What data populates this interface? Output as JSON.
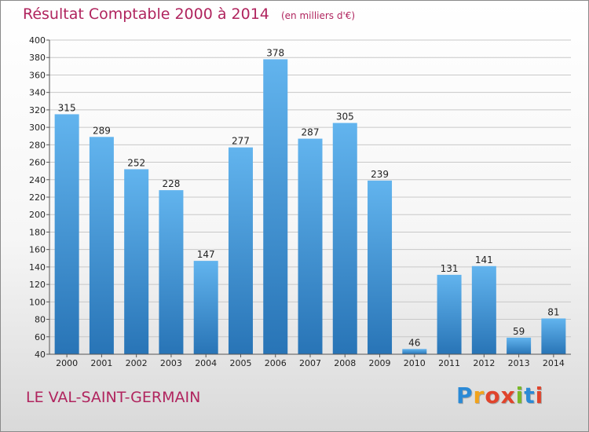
{
  "header": {
    "title": "Résultat Comptable 2000 à 2014",
    "unit": "(en milliers d'€)"
  },
  "footer": {
    "commune": "LE VAL-SAINT-GERMAIN",
    "logo": {
      "letters": [
        "P",
        "r",
        "o",
        "x",
        "i",
        "t",
        "i"
      ],
      "colors": [
        "#2b8ad6",
        "#f2a31b",
        "#e0442c",
        "#e0442c",
        "#7ab829",
        "#2b8ad6",
        "#e0442c"
      ]
    }
  },
  "colors": {
    "title": "#b0245e",
    "bar_top": "#62b4ee",
    "bar_bottom": "#2874b6",
    "grid": "#c8c8c8",
    "axis": "#555555"
  },
  "chart_data": {
    "type": "bar",
    "title": "Résultat Comptable 2000 à 2014",
    "categories": [
      "2000",
      "2001",
      "2002",
      "2003",
      "2004",
      "2005",
      "2006",
      "2007",
      "2008",
      "2009",
      "2010",
      "2011",
      "2012",
      "2013",
      "2014"
    ],
    "values": [
      315,
      289,
      252,
      228,
      147,
      277,
      378,
      287,
      305,
      239,
      46,
      131,
      141,
      59,
      81
    ],
    "ylim": [
      40,
      400
    ],
    "yticks": [
      40,
      60,
      80,
      100,
      120,
      140,
      160,
      180,
      200,
      220,
      240,
      260,
      280,
      300,
      320,
      340,
      360,
      380,
      400
    ],
    "grid": true,
    "xlabel": "",
    "ylabel": ""
  }
}
